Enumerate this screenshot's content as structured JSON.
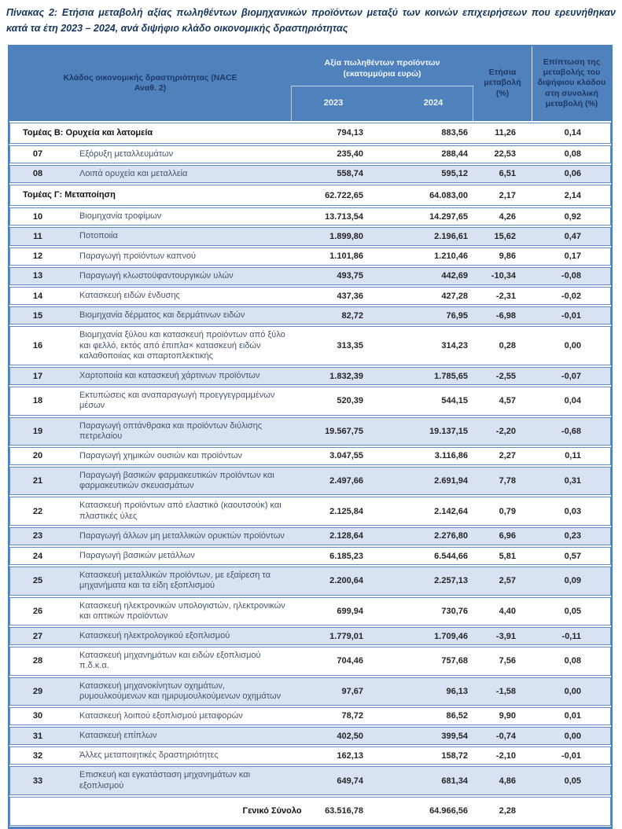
{
  "title": "Πίνακας 2: Ετήσια μεταβολή αξίας πωληθέντων βιομηχανικών προϊόντων μεταξύ των κοινών επιχειρήσεων που ερευνήθηκαν κατά τα έτη 2023 – 2024, ανά διψήφιο κλάδο οικονομικής δραστηριότητας",
  "colors": {
    "header_background": "#4f81bd",
    "header_dark_text": "#1f3864",
    "header_light_text": "#f2f6fb",
    "shaded_row": "#d9e2f2",
    "row_border": "#5f8cc4",
    "label_text": "#44546a"
  },
  "table": {
    "header": {
      "activity": "Κλάδος οικονομικής δραστηριότητας (NACE Αναθ. 2)",
      "value_group": "Αξία πωληθέντων προϊόντων (εκατομμύρια ευρώ)",
      "year_2023": "2023",
      "year_2024": "2024",
      "annual_change": "Ετήσια μεταβολή (%)",
      "impact": "Επίπτωση της μεταβολής του διψήφιου κλάδου στη συνολική μεταβολή (%)"
    },
    "rows": [
      {
        "type": "section",
        "code": "",
        "label": "Τομέας Β: Ορυχεία και λατομεία",
        "v2023": "794,13",
        "v2024": "883,56",
        "change": "11,26",
        "impact": "0,14",
        "shaded": false
      },
      {
        "type": "data",
        "code": "07",
        "label": "Εξόρυξη μεταλλευμάτων",
        "v2023": "235,40",
        "v2024": "288,44",
        "change": "22,53",
        "impact": "0,08",
        "shaded": false
      },
      {
        "type": "data",
        "code": "08",
        "label": "Λοιπά ορυχεία και μεταλλεία",
        "v2023": "558,74",
        "v2024": "595,12",
        "change": "6,51",
        "impact": "0,06",
        "shaded": true
      },
      {
        "type": "section",
        "code": "",
        "label": "Τομέας Γ: Μεταποίηση",
        "v2023": "62.722,65",
        "v2024": "64.083,00",
        "change": "2,17",
        "impact": "2,14",
        "shaded": false
      },
      {
        "type": "data",
        "code": "10",
        "label": "Βιομηχανία τροφίμων",
        "v2023": "13.713,54",
        "v2024": "14.297,65",
        "change": "4,26",
        "impact": "0,92",
        "shaded": false
      },
      {
        "type": "data",
        "code": "11",
        "label": "Ποτοποιία",
        "v2023": "1.899,80",
        "v2024": "2.196,61",
        "change": "15,62",
        "impact": "0,47",
        "shaded": true
      },
      {
        "type": "data",
        "code": "12",
        "label": "Παραγωγή προϊόντων καπνού",
        "v2023": "1.101,86",
        "v2024": "1.210,46",
        "change": "9,86",
        "impact": "0,17",
        "shaded": false
      },
      {
        "type": "data",
        "code": "13",
        "label": "Παραγωγή κλωστοϋφαντουργικών υλών",
        "v2023": "493,75",
        "v2024": "442,69",
        "change": "-10,34",
        "impact": "-0,08",
        "shaded": true
      },
      {
        "type": "data",
        "code": "14",
        "label": "Κατασκευή ειδών ένδυσης",
        "v2023": "437,36",
        "v2024": "427,28",
        "change": "-2,31",
        "impact": "-0,02",
        "shaded": false
      },
      {
        "type": "data",
        "code": "15",
        "label": "Βιομηχανία δέρματος και δερμάτινων ειδών",
        "v2023": "82,72",
        "v2024": "76,95",
        "change": "-6,98",
        "impact": "-0,01",
        "shaded": true
      },
      {
        "type": "data",
        "code": "16",
        "label": "Βιομηχανία ξύλου και κατασκευή προϊόντων από ξύλο και φελλό, εκτός από έπιπλα× κατασκευή ειδών καλαθοποιίας και σπαρτοπλεκτικής",
        "v2023": "313,35",
        "v2024": "314,23",
        "change": "0,28",
        "impact": "0,00",
        "shaded": false
      },
      {
        "type": "data",
        "code": "17",
        "label": "Χαρτοποιία και κατασκευή χάρτινων προϊόντων",
        "v2023": "1.832,39",
        "v2024": "1.785,65",
        "change": "-2,55",
        "impact": "-0,07",
        "shaded": true
      },
      {
        "type": "data",
        "code": "18",
        "label": "Εκτυπώσεις και αναπαραγωγή προεγγεγραμμένων μέσων",
        "v2023": "520,39",
        "v2024": "544,15",
        "change": "4,57",
        "impact": "0,04",
        "shaded": false
      },
      {
        "type": "data",
        "code": "19",
        "label": "Παραγωγή οπτάνθρακα και προϊόντων διύλισης πετρελαίου",
        "v2023": "19.567,75",
        "v2024": "19.137,15",
        "change": "-2,20",
        "impact": "-0,68",
        "shaded": true
      },
      {
        "type": "data",
        "code": "20",
        "label": "Παραγωγή χημικών ουσιών και προϊόντων",
        "v2023": "3.047,55",
        "v2024": "3.116,86",
        "change": "2,27",
        "impact": "0,11",
        "shaded": false
      },
      {
        "type": "data",
        "code": "21",
        "label": "Παραγωγή βασικών φαρμακευτικών προϊόντων και φαρμακευτικών σκευασμάτων",
        "v2023": "2.497,66",
        "v2024": "2.691,94",
        "change": "7,78",
        "impact": "0,31",
        "shaded": true
      },
      {
        "type": "data",
        "code": "22",
        "label": "Κατασκευή προϊόντων από ελαστικό (καουτσούκ) και πλαστικές ύλες",
        "v2023": "2.125,84",
        "v2024": "2.142,64",
        "change": "0,79",
        "impact": "0,03",
        "shaded": false
      },
      {
        "type": "data",
        "code": "23",
        "label": "Παραγωγή άλλων μη μεταλλικών ορυκτών προϊόντων",
        "v2023": "2.128,64",
        "v2024": "2.276,80",
        "change": "6,96",
        "impact": "0,23",
        "shaded": true
      },
      {
        "type": "data",
        "code": "24",
        "label": "Παραγωγή βασικών μετάλλων",
        "v2023": "6.185,23",
        "v2024": "6.544,66",
        "change": "5,81",
        "impact": "0,57",
        "shaded": false
      },
      {
        "type": "data",
        "code": "25",
        "label": "Κατασκευή μεταλλικών προϊόντων, με εξαίρεση τα μηχανήματα και τα είδη εξοπλισμού",
        "v2023": "2.200,64",
        "v2024": "2.257,13",
        "change": "2,57",
        "impact": "0,09",
        "shaded": true
      },
      {
        "type": "data",
        "code": "26",
        "label": "Κατασκευή ηλεκτρονικών υπολογιστών, ηλεκτρονικών και οπτικών προϊόντων",
        "v2023": "699,94",
        "v2024": "730,76",
        "change": "4,40",
        "impact": "0,05",
        "shaded": false
      },
      {
        "type": "data",
        "code": "27",
        "label": "Κατασκευή ηλεκτρολογικού εξοπλισμού",
        "v2023": "1.779,01",
        "v2024": "1.709,46",
        "change": "-3,91",
        "impact": "-0,11",
        "shaded": true
      },
      {
        "type": "data",
        "code": "28",
        "label": "Κατασκευή μηχανημάτων και ειδών εξοπλισμού π.δ.κ.α.",
        "v2023": "704,46",
        "v2024": "757,68",
        "change": "7,56",
        "impact": "0,08",
        "shaded": false
      },
      {
        "type": "data",
        "code": "29",
        "label": "Κατασκευή μηχανοκίνητων οχημάτων, ρυμουλκούμενων και ημιρυμουλκούμενων οχημάτων",
        "v2023": "97,67",
        "v2024": "96,13",
        "change": "-1,58",
        "impact": "0,00",
        "shaded": true
      },
      {
        "type": "data",
        "code": "30",
        "label": "Κατασκευή λοιπού εξοπλισμού μεταφορών",
        "v2023": "78,72",
        "v2024": "86,52",
        "change": "9,90",
        "impact": "0,01",
        "shaded": false
      },
      {
        "type": "data",
        "code": "31",
        "label": "Κατασκευή επίπλων",
        "v2023": "402,50",
        "v2024": "399,54",
        "change": "-0,74",
        "impact": "0,00",
        "shaded": true
      },
      {
        "type": "data",
        "code": "32",
        "label": "Άλλες μεταποιητικές δραστηριότητες",
        "v2023": "162,13",
        "v2024": "158,72",
        "change": "-2,10",
        "impact": "-0,01",
        "shaded": false
      },
      {
        "type": "data",
        "code": "33",
        "label": "Επισκευή και εγκατάσταση μηχανημάτων και εξοπλισμού",
        "v2023": "649,74",
        "v2024": "681,34",
        "change": "4,86",
        "impact": "0,05",
        "shaded": true
      },
      {
        "type": "total",
        "code": "",
        "label": "Γενικό Σύνολο",
        "v2023": "63.516,78",
        "v2024": "64.966,56",
        "change": "2,28",
        "impact": "",
        "shaded": false
      }
    ]
  }
}
